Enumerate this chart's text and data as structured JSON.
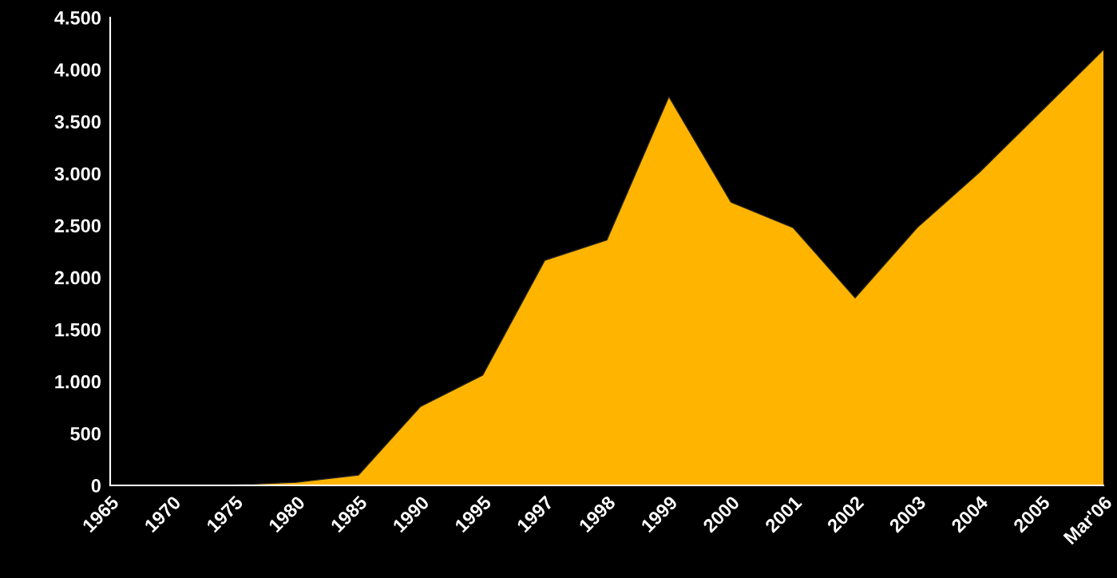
{
  "chart_data": {
    "type": "area",
    "categories": [
      "1965",
      "1970",
      "1975",
      "1980",
      "1985",
      "1990",
      "1995",
      "1997",
      "1998",
      "1999",
      "2000",
      "2001",
      "2002",
      "2003",
      "2004",
      "2005",
      "Mar'06"
    ],
    "series": [
      {
        "color": "#ffb400",
        "values": [
          0,
          0,
          5,
          30,
          100,
          760,
          1060,
          2165,
          2360,
          3740,
          2725,
          2480,
          1805,
          2480,
          3010,
          3600,
          4190
        ]
      }
    ],
    "ylim": [
      0,
      4500
    ],
    "yticks": [
      0,
      500,
      {
        "value": 1000,
        "label": "1.000"
      },
      {
        "value": 1500,
        "label": "1.500"
      },
      {
        "value": 2000,
        "label": "2.000"
      },
      {
        "value": 2500,
        "label": "2.500"
      },
      {
        "value": 3000,
        "label": "3.000"
      },
      {
        "value": 3500,
        "label": "3.500"
      },
      {
        "value": 4000,
        "label": "4.000"
      },
      {
        "value": 4500,
        "label": "4.500"
      }
    ],
    "grid": false,
    "legend": false
  }
}
